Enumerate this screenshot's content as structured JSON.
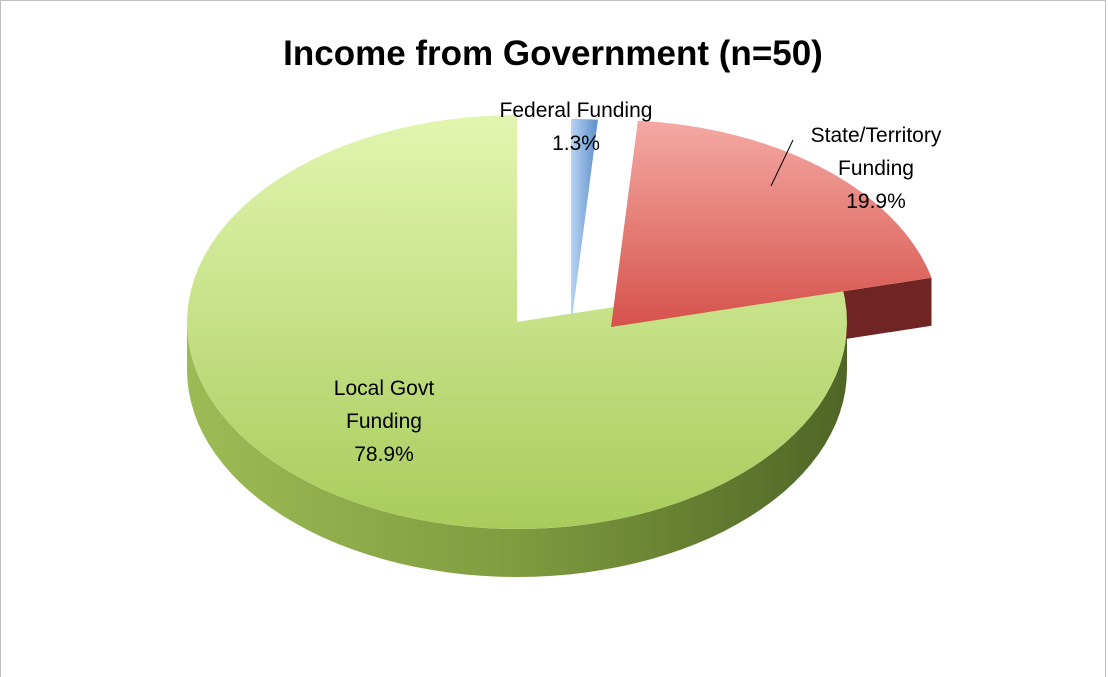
{
  "chart_data": {
    "type": "pie",
    "title": "Income from Government (n=50)",
    "slices": [
      {
        "name": "Federal Funding",
        "value": 1.3,
        "label": "1.3%",
        "label_lines": [
          "Federal Funding"
        ],
        "color": "#8fb8e8"
      },
      {
        "name": "State/Territory Funding",
        "value": 19.9,
        "label": "19.9%",
        "label_lines": [
          "State/Territory",
          "Funding"
        ],
        "color": "#d9534f"
      },
      {
        "name": "Local Govt Funding",
        "value": 78.9,
        "label": "78.9%",
        "label_lines": [
          "Local Govt",
          "Funding"
        ],
        "color": "#a6c960"
      }
    ],
    "style": "3d-exploded",
    "legend": "none"
  }
}
